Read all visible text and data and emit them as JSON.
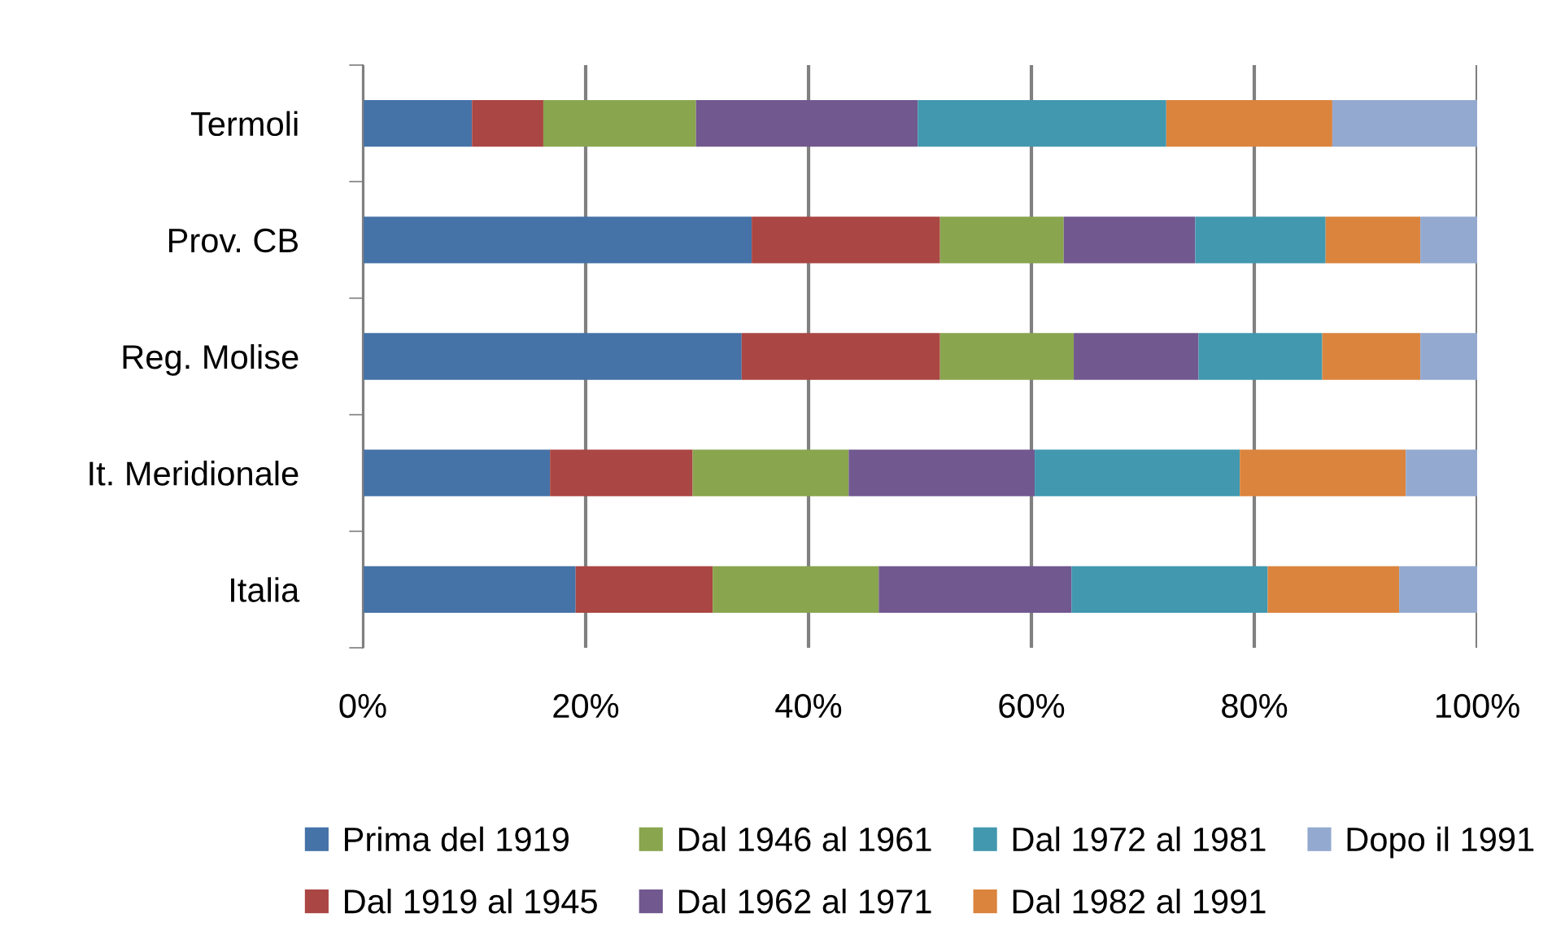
{
  "chart_data": {
    "type": "bar",
    "orientation": "horizontal",
    "stacked": true,
    "categories": [
      "Termoli",
      "Prov. CB",
      "Reg. Molise",
      "It. Meridionale",
      "Italia"
    ],
    "series": [
      {
        "name": "Prima del 1919",
        "color": "#4572a7",
        "values": [
          9.8,
          34.9,
          34.0,
          16.8,
          19.1
        ]
      },
      {
        "name": "Dal 1919 al 1945",
        "color": "#aa4643",
        "values": [
          6.4,
          16.9,
          17.8,
          12.8,
          12.3
        ]
      },
      {
        "name": "Dal 1946 al 1961",
        "color": "#89a54e",
        "values": [
          13.7,
          11.1,
          12.0,
          14.0,
          14.9
        ]
      },
      {
        "name": "Dal 1962 al 1971",
        "color": "#71588f",
        "values": [
          19.9,
          11.8,
          11.2,
          16.7,
          17.3
        ]
      },
      {
        "name": "Dal 1972 al 1981",
        "color": "#4198af",
        "values": [
          22.3,
          11.7,
          11.1,
          18.4,
          17.6
        ]
      },
      {
        "name": "Dal 1982 al 1991",
        "color": "#db843d",
        "values": [
          14.9,
          8.5,
          8.8,
          14.9,
          11.8
        ]
      },
      {
        "name": "Dopo il 1991",
        "color": "#93a9cf",
        "values": [
          13.0,
          5.1,
          5.1,
          6.4,
          7.0
        ]
      }
    ],
    "xlim": [
      0,
      100
    ],
    "xticks": [
      {
        "value": 0,
        "label": "0%"
      },
      {
        "value": 20,
        "label": "20%"
      },
      {
        "value": 40,
        "label": "40%"
      },
      {
        "value": 60,
        "label": "60%"
      },
      {
        "value": 80,
        "label": "80%"
      },
      {
        "value": 100,
        "label": "100%"
      }
    ],
    "grid": "x",
    "legend": "bottom"
  }
}
